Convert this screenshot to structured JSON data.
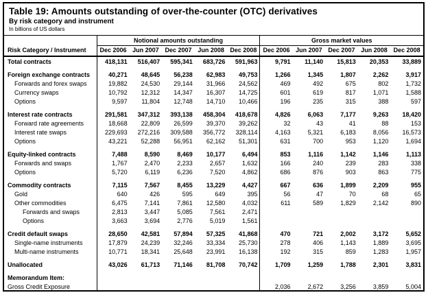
{
  "colors": {
    "border": "#000000",
    "text": "#000000",
    "background": "#ffffff"
  },
  "header": {
    "title": "Table 19: Amounts outstanding of over-the-counter (OTC) derivatives",
    "subtitle": "By risk category and instrument",
    "note": "In billions of US dollars"
  },
  "table": {
    "row_header": "Risk Category / Instrument",
    "group1": "Notional amounts outstanding",
    "group2": "Gross market values",
    "columns": [
      "Dec 2006",
      "Jun 2007",
      "Dec 2007",
      "Jun 2008",
      "Dec 2008"
    ],
    "rows": [
      {
        "label": "Total contracts",
        "level": 0,
        "bold": true,
        "n": [
          "418,131",
          "516,407",
          "595,341",
          "683,726",
          "591,963"
        ],
        "g": [
          "9,791",
          "11,140",
          "15,813",
          "20,353",
          "33,889"
        ]
      },
      {
        "type": "gap"
      },
      {
        "label": "Foreign exchange contracts",
        "level": 0,
        "bold": true,
        "n": [
          "40,271",
          "48,645",
          "56,238",
          "62,983",
          "49,753"
        ],
        "g": [
          "1,266",
          "1,345",
          "1,807",
          "2,262",
          "3,917"
        ]
      },
      {
        "label": "Forwards and forex swaps",
        "level": 1,
        "bold": false,
        "n": [
          "19,882",
          "24,530",
          "29,144",
          "31,966",
          "24,562"
        ],
        "g": [
          "469",
          "492",
          "675",
          "802",
          "1,732"
        ]
      },
      {
        "label": "Currency swaps",
        "level": 1,
        "bold": false,
        "n": [
          "10,792",
          "12,312",
          "14,347",
          "16,307",
          "14,725"
        ],
        "g": [
          "601",
          "619",
          "817",
          "1,071",
          "1,588"
        ]
      },
      {
        "label": "Options",
        "level": 1,
        "bold": false,
        "n": [
          "9,597",
          "11,804",
          "12,748",
          "14,710",
          "10,466"
        ],
        "g": [
          "196",
          "235",
          "315",
          "388",
          "597"
        ]
      },
      {
        "type": "gap"
      },
      {
        "label": "Interest rate contracts",
        "level": 0,
        "bold": true,
        "n": [
          "291,581",
          "347,312",
          "393,138",
          "458,304",
          "418,678"
        ],
        "g": [
          "4,826",
          "6,063",
          "7,177",
          "9,263",
          "18,420"
        ]
      },
      {
        "label": "Forward rate agreements",
        "level": 1,
        "bold": false,
        "n": [
          "18,668",
          "22,809",
          "26,599",
          "39,370",
          "39,262"
        ],
        "g": [
          "32",
          "43",
          "41",
          "88",
          "153"
        ]
      },
      {
        "label": "Interest rate swaps",
        "level": 1,
        "bold": false,
        "n": [
          "229,693",
          "272,216",
          "309,588",
          "356,772",
          "328,114"
        ],
        "g": [
          "4,163",
          "5,321",
          "6,183",
          "8,056",
          "16,573"
        ]
      },
      {
        "label": "Options",
        "level": 1,
        "bold": false,
        "n": [
          "43,221",
          "52,288",
          "56,951",
          "62,162",
          "51,301"
        ],
        "g": [
          "631",
          "700",
          "953",
          "1,120",
          "1,694"
        ]
      },
      {
        "type": "gap"
      },
      {
        "label": "Equity-linked contracts",
        "level": 0,
        "bold": true,
        "n": [
          "7,488",
          "8,590",
          "8,469",
          "10,177",
          "6,494"
        ],
        "g": [
          "853",
          "1,116",
          "1,142",
          "1,146",
          "1,113"
        ]
      },
      {
        "label": "Forwards and swaps",
        "level": 1,
        "bold": false,
        "n": [
          "1,767",
          "2,470",
          "2,233",
          "2,657",
          "1,632"
        ],
        "g": [
          "166",
          "240",
          "239",
          "283",
          "338"
        ]
      },
      {
        "label": "Options",
        "level": 1,
        "bold": false,
        "n": [
          "5,720",
          "6,119",
          "6,236",
          "7,520",
          "4,862"
        ],
        "g": [
          "686",
          "876",
          "903",
          "863",
          "775"
        ]
      },
      {
        "type": "gap"
      },
      {
        "label": "Commodity contracts",
        "level": 0,
        "bold": true,
        "n": [
          "7,115",
          "7,567",
          "8,455",
          "13,229",
          "4,427"
        ],
        "g": [
          "667",
          "636",
          "1,899",
          "2,209",
          "955"
        ]
      },
      {
        "label": "Gold",
        "level": 1,
        "bold": false,
        "n": [
          "640",
          "426",
          "595",
          "649",
          "395"
        ],
        "g": [
          "56",
          "47",
          "70",
          "68",
          "65"
        ]
      },
      {
        "label": "Other commodities",
        "level": 1,
        "bold": false,
        "n": [
          "6,475",
          "7,141",
          "7,861",
          "12,580",
          "4,032"
        ],
        "g": [
          "611",
          "589",
          "1,829",
          "2,142",
          "890"
        ]
      },
      {
        "label": "Forwards and swaps",
        "level": 2,
        "bold": false,
        "n": [
          "2,813",
          "3,447",
          "5,085",
          "7,561",
          "2,471"
        ],
        "g": [
          "",
          "",
          "",
          "",
          ""
        ]
      },
      {
        "label": "Options",
        "level": 2,
        "bold": false,
        "n": [
          "3,663",
          "3,694",
          "2,776",
          "5,019",
          "1,561"
        ],
        "g": [
          "",
          "",
          "",
          "",
          ""
        ]
      },
      {
        "type": "gap"
      },
      {
        "label": "Credit default swaps",
        "level": 0,
        "bold": true,
        "n": [
          "28,650",
          "42,581",
          "57,894",
          "57,325",
          "41,868"
        ],
        "g": [
          "470",
          "721",
          "2,002",
          "3,172",
          "5,652"
        ]
      },
      {
        "label": "Single-name instruments",
        "level": 1,
        "bold": false,
        "n": [
          "17,879",
          "24,239",
          "32,246",
          "33,334",
          "25,730"
        ],
        "g": [
          "278",
          "406",
          "1,143",
          "1,889",
          "3,695"
        ]
      },
      {
        "label": "Multi-name instruments",
        "level": 1,
        "bold": false,
        "n": [
          "10,771",
          "18,341",
          "25,648",
          "23,991",
          "16,138"
        ],
        "g": [
          "192",
          "315",
          "859",
          "1,283",
          "1,957"
        ]
      },
      {
        "type": "gap"
      },
      {
        "label": "Unallocated",
        "level": 0,
        "bold": true,
        "n": [
          "43,026",
          "61,713",
          "71,146",
          "81,708",
          "70,742"
        ],
        "g": [
          "1,709",
          "1,259",
          "1,788",
          "2,301",
          "3,831"
        ]
      },
      {
        "type": "gap"
      },
      {
        "label": "Memorandum Item:",
        "level": 0,
        "bold": true,
        "n": [
          "",
          "",
          "",
          "",
          ""
        ],
        "g": [
          "",
          "",
          "",
          "",
          ""
        ]
      },
      {
        "label": "Gross Credit Exposure",
        "level": 0,
        "bold": false,
        "n": [
          "",
          "",
          "",
          "",
          ""
        ],
        "g": [
          "2,036",
          "2,672",
          "3,256",
          "3,859",
          "5,004"
        ]
      }
    ]
  }
}
